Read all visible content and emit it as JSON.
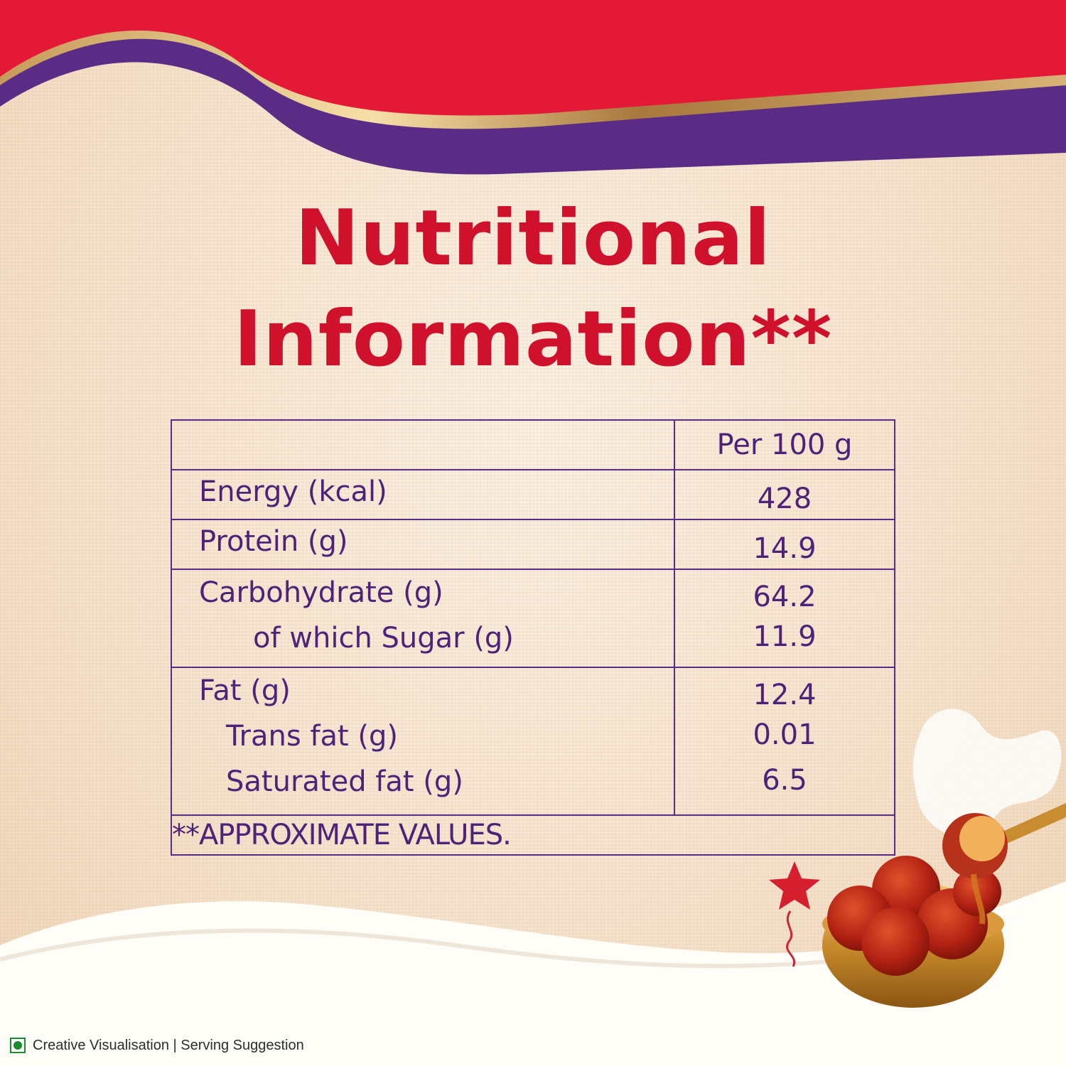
{
  "title": {
    "line1": "Nutritional",
    "line2": "Information**"
  },
  "table": {
    "column_header": "Per 100 g",
    "rows": [
      {
        "label": "Energy (kcal)",
        "value": "428"
      },
      {
        "label": "Protein (g)",
        "value": "14.9"
      },
      {
        "label": "Carbohydrate (g)",
        "value": "64.2"
      },
      {
        "label": "of which Sugar (g)",
        "value": "11.9"
      },
      {
        "label": "Fat (g)",
        "value": "12.4"
      },
      {
        "label": "Trans fat (g)",
        "value": "0.01"
      },
      {
        "label": "Saturated fat (g)",
        "value": "6.5"
      }
    ],
    "footnote": "**APPROXIMATE VALUES."
  },
  "footer": {
    "text": "Creative Visualisation | Serving Suggestion",
    "icon": "veg-mark-icon"
  },
  "colors": {
    "title": "#d0112b",
    "table_text": "#4e2278",
    "band_red": "#e31937",
    "band_purple": "#5b2c86",
    "band_gold": "#c9a063"
  }
}
